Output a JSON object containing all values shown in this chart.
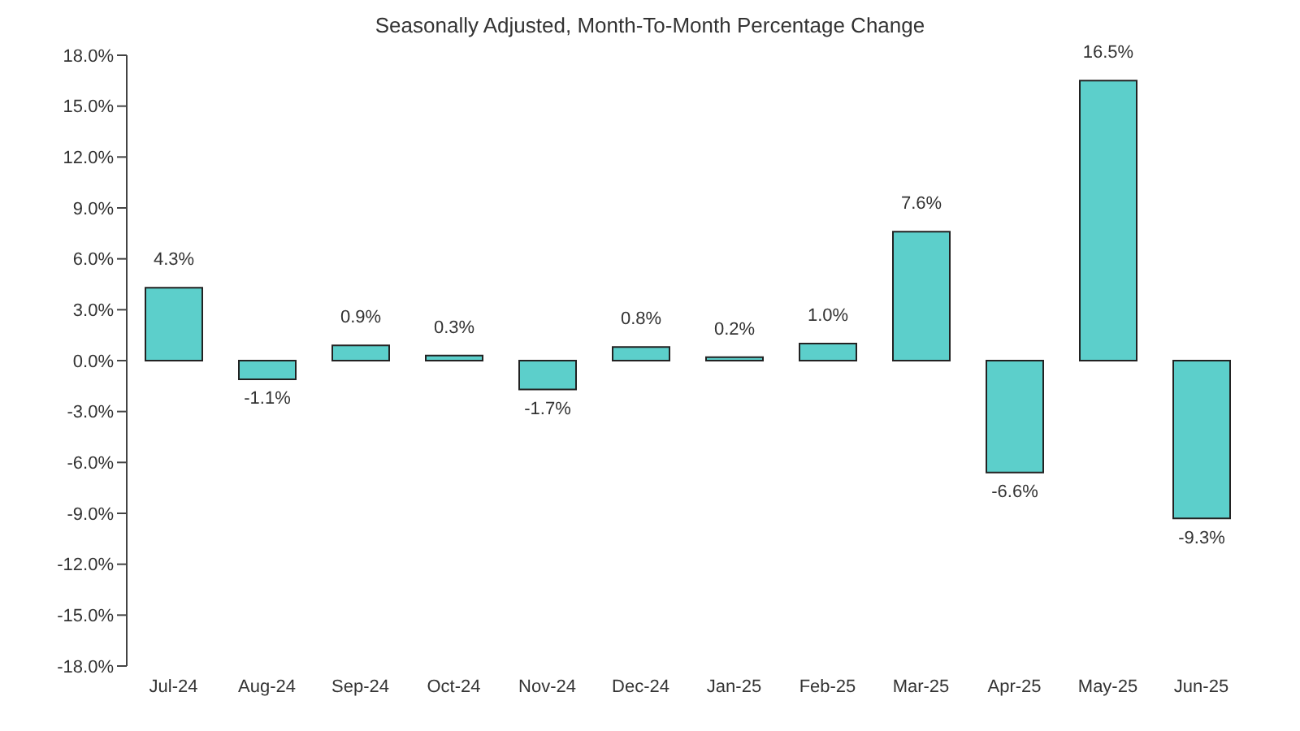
{
  "chart_data": {
    "type": "bar",
    "title": "Seasonally Adjusted, Month-To-Month Percentage Change",
    "categories": [
      "Jul-24",
      "Aug-24",
      "Sep-24",
      "Oct-24",
      "Nov-24",
      "Dec-24",
      "Jan-25",
      "Feb-25",
      "Mar-25",
      "Apr-25",
      "May-25",
      "Jun-25"
    ],
    "values": [
      4.3,
      -1.1,
      0.9,
      0.3,
      -1.7,
      0.8,
      0.2,
      1.0,
      7.6,
      -6.6,
      16.5,
      -9.3
    ],
    "value_labels": [
      "4.3%",
      "-1.1%",
      "0.9%",
      "0.3%",
      "-1.7%",
      "0.8%",
      "0.2%",
      "1.0%",
      "7.6%",
      "-6.6%",
      "16.5%",
      "-9.3%"
    ],
    "color": "#5ccfcb",
    "ylim": [
      -18,
      18
    ],
    "yticks": [
      {
        "value": -18,
        "label": "-18.0%"
      },
      {
        "value": -15,
        "label": "-15.0%"
      },
      {
        "value": -12,
        "label": "-12.0%"
      },
      {
        "value": -9,
        "label": "-9.0%"
      },
      {
        "value": -6,
        "label": "-6.0%"
      },
      {
        "value": -3,
        "label": "-3.0%"
      },
      {
        "value": 0,
        "label": "0.0%"
      },
      {
        "value": 3,
        "label": "3.0%"
      },
      {
        "value": 6,
        "label": "6.0%"
      },
      {
        "value": 9,
        "label": "9.0%"
      },
      {
        "value": 12,
        "label": "12.0%"
      },
      {
        "value": 15,
        "label": "15.0%"
      },
      {
        "value": 18,
        "label": "18.0%"
      }
    ],
    "grid": false,
    "legend": false
  }
}
